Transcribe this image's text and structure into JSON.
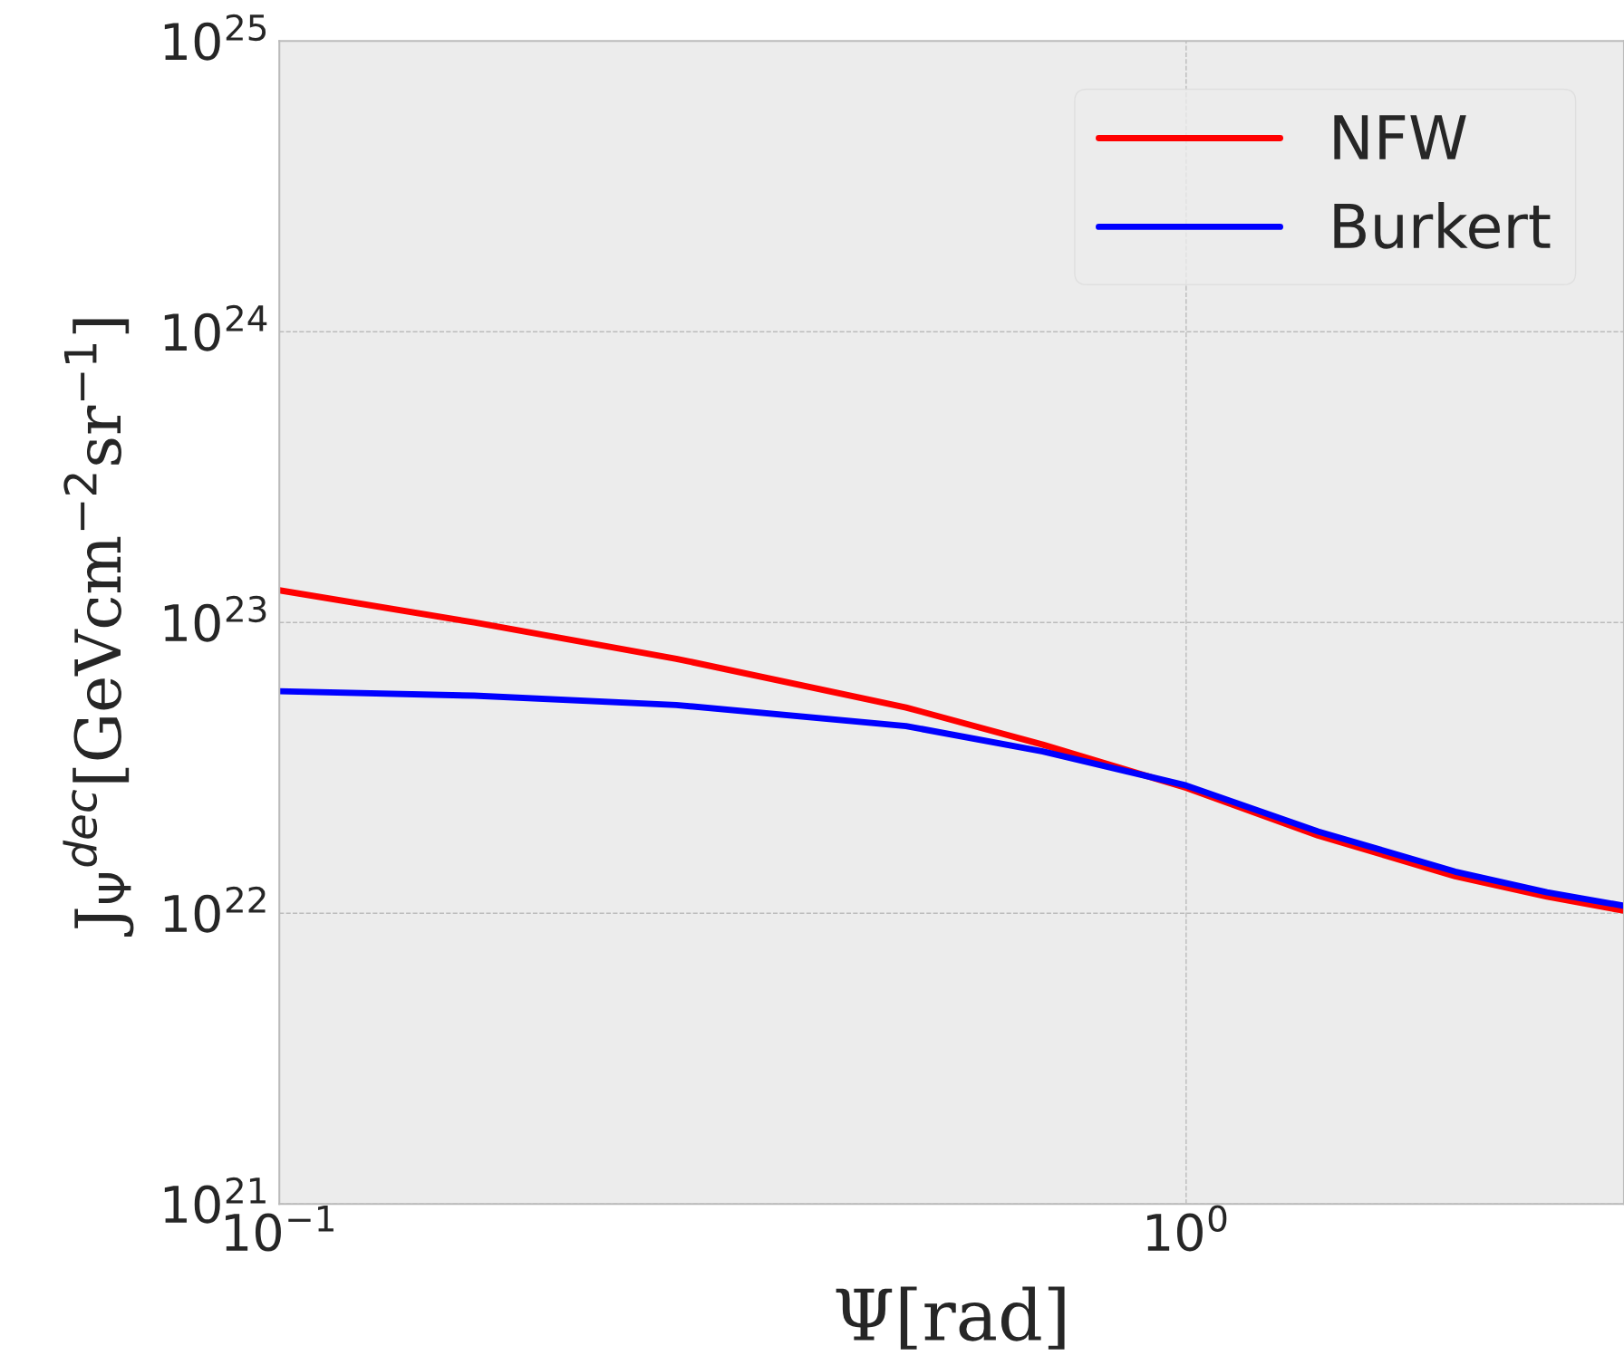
{
  "chart_data": {
    "type": "line",
    "xlabel": "Ψ[rad]",
    "ylabel": "J$_{Ψ}$$^{dec}$[GeVcm$^{−2}$sr$^{−1}$]",
    "log": "xy",
    "xlim": [
      0.1,
      3.04
    ],
    "ylim": [
      1e+21,
      1e+25
    ],
    "xticks": [
      {
        "value": 0.1,
        "label": "10$^{−1}$"
      },
      {
        "value": 1,
        "label": "10$^{0}$"
      }
    ],
    "yticks": [
      {
        "value": 1e+21,
        "label": "10$^{21}$"
      },
      {
        "value": 1e+22,
        "label": "10$^{22}$"
      },
      {
        "value": 1e+23,
        "label": "10$^{23}$"
      },
      {
        "value": 1e+24,
        "label": "10$^{24}$"
      },
      {
        "value": 1e+25,
        "label": "10$^{25}$"
      }
    ],
    "grid": true,
    "legend": "top right",
    "line_style": "solid",
    "marker": "none",
    "x": [
      0.1,
      0.164,
      0.274,
      0.491,
      0.695,
      1.0,
      1.398,
      1.98,
      2.5,
      3.04
    ],
    "series": [
      {
        "name": "NFW",
        "color": "#ff0000",
        "values": [
          1.29e+23,
          1e+23,
          7.5e+22,
          5.1e+22,
          3.8e+22,
          2.7e+22,
          1.85e+22,
          1.34e+22,
          1.14e+22,
          1.02e+22
        ]
      },
      {
        "name": "Burkert",
        "color": "#0000ff",
        "values": [
          5.8e+22,
          5.6e+22,
          5.2e+22,
          4.4e+22,
          3.6e+22,
          2.75e+22,
          1.91e+22,
          1.39e+22,
          1.18e+22,
          1.06e+22
        ]
      }
    ]
  }
}
